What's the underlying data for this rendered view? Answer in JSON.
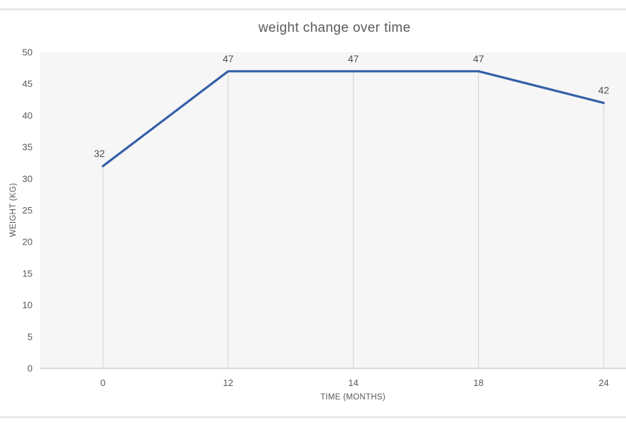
{
  "chart_data": {
    "type": "line",
    "title": "weight change over time",
    "xlabel": "TIME (MONTHS)",
    "ylabel": "WEIGHT (KG)",
    "categories": [
      "0",
      "12",
      "14",
      "18",
      "24"
    ],
    "series": [
      {
        "name": "weight",
        "values": [
          32,
          47,
          47,
          47,
          42
        ]
      }
    ],
    "data_labels": [
      "32",
      "47",
      "47",
      "47",
      "42"
    ],
    "ylim": [
      0,
      50
    ],
    "ytick_step": 5,
    "yticks": [
      "0",
      "5",
      "10",
      "15",
      "20",
      "25",
      "30",
      "35",
      "40",
      "45",
      "50"
    ],
    "grid": "vertical-drop-lines-only",
    "legend": "none",
    "markers": "none",
    "colors": {
      "line": "#3560a8",
      "title_text": "#595959",
      "axis_tick_text": "#595959",
      "axis_title_text": "#595959",
      "data_label_text": "#4f4f4f",
      "drop_line": "#d9d9d9",
      "axis_line": "#d9d9d9",
      "plot_background": "#f7f6f6",
      "page_background": "#ffffff",
      "frame_rule": "#e3e3e3"
    }
  }
}
